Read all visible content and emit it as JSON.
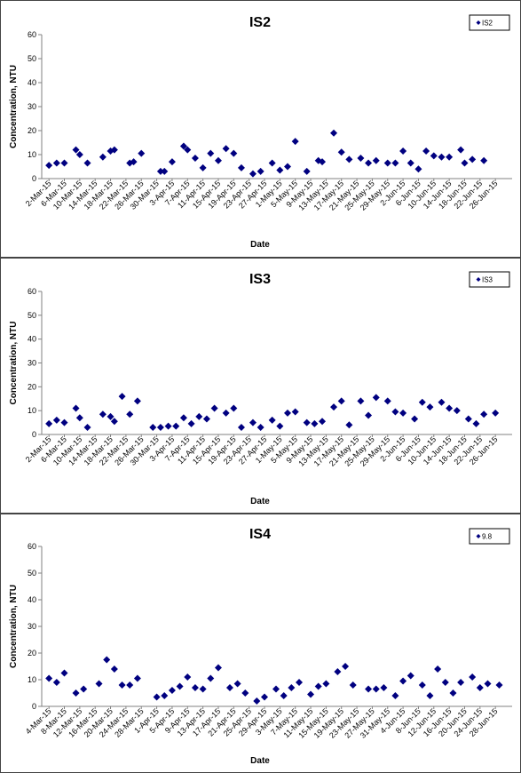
{
  "chart_data": [
    {
      "type": "scatter",
      "title": "IS2",
      "xlabel": "Date",
      "ylabel": "Concentration, NTU",
      "ylim": [
        0,
        60
      ],
      "yticks": [
        "0",
        "10",
        "20",
        "30",
        "40",
        "50",
        "60"
      ],
      "grid": false,
      "legend_position": "top-right",
      "marker_color": "#000080",
      "series": [
        {
          "name": "IS2",
          "points": [
            [
              "2-Mar-15",
              5.5
            ],
            [
              "4-Mar-15",
              6.5
            ],
            [
              "6-Mar-15",
              6.5
            ],
            [
              "9-Mar-15",
              12
            ],
            [
              "10-Mar-15",
              10
            ],
            [
              "12-Mar-15",
              6.5
            ],
            [
              "16-Mar-15",
              9
            ],
            [
              "18-Mar-15",
              11.5
            ],
            [
              "19-Mar-15",
              12
            ],
            [
              "23-Mar-15",
              6.5
            ],
            [
              "24-Mar-15",
              7
            ],
            [
              "26-Mar-15",
              10.5
            ],
            [
              "31-Mar-15",
              3
            ],
            [
              "1-Apr-15",
              3
            ],
            [
              "3-Apr-15",
              7
            ],
            [
              "6-Apr-15",
              13.5
            ],
            [
              "7-Apr-15",
              12
            ],
            [
              "9-Apr-15",
              8.5
            ],
            [
              "11-Apr-15",
              4.5
            ],
            [
              "13-Apr-15",
              10.5
            ],
            [
              "15-Apr-15",
              7.5
            ],
            [
              "17-Apr-15",
              12.5
            ],
            [
              "19-Apr-15",
              10.5
            ],
            [
              "21-Apr-15",
              4.5
            ],
            [
              "24-Apr-15",
              2
            ],
            [
              "26-Apr-15",
              3
            ],
            [
              "29-Apr-15",
              6.5
            ],
            [
              "1-May-15",
              3.5
            ],
            [
              "3-May-15",
              5
            ],
            [
              "5-May-15",
              15.5
            ],
            [
              "8-May-15",
              3
            ],
            [
              "11-May-15",
              7.5
            ],
            [
              "12-May-15",
              7
            ],
            [
              "15-May-15",
              19
            ],
            [
              "17-May-15",
              11
            ],
            [
              "19-May-15",
              8
            ],
            [
              "22-May-15",
              8.5
            ],
            [
              "24-May-15",
              6.5
            ],
            [
              "26-May-15",
              7.5
            ],
            [
              "29-May-15",
              6.5
            ],
            [
              "31-May-15",
              6.5
            ],
            [
              "2-Jun-15",
              11.5
            ],
            [
              "4-Jun-15",
              6.5
            ],
            [
              "6-Jun-15",
              4
            ],
            [
              "8-Jun-15",
              11.5
            ],
            [
              "10-Jun-15",
              9.5
            ],
            [
              "12-Jun-15",
              9
            ],
            [
              "14-Jun-15",
              9
            ],
            [
              "17-Jun-15",
              12
            ],
            [
              "18-Jun-15",
              6.5
            ],
            [
              "20-Jun-15",
              8
            ],
            [
              "23-Jun-15",
              7.5
            ]
          ]
        }
      ],
      "xticks": [
        "2-Mar-15",
        "6-Mar-15",
        "10-Mar-15",
        "14-Mar-15",
        "18-Mar-15",
        "22-Mar-15",
        "26-Mar-15",
        "30-Mar-15",
        "3-Apr-15",
        "7-Apr-15",
        "11-Apr-15",
        "15-Apr-15",
        "19-Apr-15",
        "23-Apr-15",
        "27-Apr-15",
        "1-May-15",
        "5-May-15",
        "9-May-15",
        "13-May-15",
        "17-May-15",
        "21-May-15",
        "25-May-15",
        "29-May-15",
        "2-Jun-15",
        "6-Jun-15",
        "10-Jun-15",
        "14-Jun-15",
        "18-Jun-15",
        "22-Jun-15",
        "26-Jun-15"
      ]
    },
    {
      "type": "scatter",
      "title": "IS3",
      "xlabel": "Date",
      "ylabel": "Concentration, NTU",
      "ylim": [
        0,
        60
      ],
      "yticks": [
        "0",
        "10",
        "20",
        "30",
        "40",
        "50",
        "60"
      ],
      "grid": false,
      "legend_position": "top-right",
      "marker_color": "#000080",
      "series": [
        {
          "name": "IS3",
          "points": [
            [
              "2-Mar-15",
              4.5
            ],
            [
              "4-Mar-15",
              6
            ],
            [
              "6-Mar-15",
              5
            ],
            [
              "9-Mar-15",
              11
            ],
            [
              "10-Mar-15",
              7
            ],
            [
              "12-Mar-15",
              3
            ],
            [
              "16-Mar-15",
              8.5
            ],
            [
              "18-Mar-15",
              7.5
            ],
            [
              "19-Mar-15",
              5.5
            ],
            [
              "21-Mar-15",
              16
            ],
            [
              "23-Mar-15",
              8.5
            ],
            [
              "25-Mar-15",
              14
            ],
            [
              "29-Mar-15",
              3
            ],
            [
              "31-Mar-15",
              3
            ],
            [
              "2-Apr-15",
              3.5
            ],
            [
              "4-Apr-15",
              3.5
            ],
            [
              "6-Apr-15",
              7
            ],
            [
              "8-Apr-15",
              4.5
            ],
            [
              "10-Apr-15",
              7.5
            ],
            [
              "12-Apr-15",
              6.5
            ],
            [
              "14-Apr-15",
              11
            ],
            [
              "17-Apr-15",
              9
            ],
            [
              "19-Apr-15",
              11
            ],
            [
              "21-Apr-15",
              3
            ],
            [
              "24-Apr-15",
              5
            ],
            [
              "26-Apr-15",
              3
            ],
            [
              "29-Apr-15",
              6
            ],
            [
              "1-May-15",
              3.5
            ],
            [
              "3-May-15",
              9
            ],
            [
              "5-May-15",
              9.5
            ],
            [
              "8-May-15",
              5
            ],
            [
              "10-May-15",
              4.5
            ],
            [
              "12-May-15",
              5.5
            ],
            [
              "15-May-15",
              11.5
            ],
            [
              "17-May-15",
              14
            ],
            [
              "19-May-15",
              4
            ],
            [
              "22-May-15",
              14
            ],
            [
              "24-May-15",
              8
            ],
            [
              "26-May-15",
              15.5
            ],
            [
              "29-May-15",
              14
            ],
            [
              "31-May-15",
              9.5
            ],
            [
              "2-Jun-15",
              9
            ],
            [
              "5-Jun-15",
              6.5
            ],
            [
              "7-Jun-15",
              13.5
            ],
            [
              "9-Jun-15",
              11.5
            ],
            [
              "12-Jun-15",
              13.5
            ],
            [
              "14-Jun-15",
              11
            ],
            [
              "16-Jun-15",
              10
            ],
            [
              "19-Jun-15",
              6.5
            ],
            [
              "21-Jun-15",
              4.5
            ],
            [
              "23-Jun-15",
              8.5
            ],
            [
              "26-Jun-15",
              9
            ]
          ]
        }
      ],
      "xticks": [
        "2-Mar-15",
        "6-Mar-15",
        "10-Mar-15",
        "14-Mar-15",
        "18-Mar-15",
        "22-Mar-15",
        "26-Mar-15",
        "30-Mar-15",
        "3-Apr-15",
        "7-Apr-15",
        "11-Apr-15",
        "15-Apr-15",
        "19-Apr-15",
        "23-Apr-15",
        "27-Apr-15",
        "1-May-15",
        "5-May-15",
        "9-May-15",
        "13-May-15",
        "17-May-15",
        "21-May-15",
        "25-May-15",
        "29-May-15",
        "2-Jun-15",
        "6-Jun-15",
        "10-Jun-15",
        "14-Jun-15",
        "18-Jun-15",
        "22-Jun-15",
        "26-Jun-15"
      ]
    },
    {
      "type": "scatter",
      "title": "IS4",
      "xlabel": "Date",
      "ylabel": "Concentration, NTU",
      "ylim": [
        0,
        60
      ],
      "yticks": [
        "0",
        "10",
        "20",
        "30",
        "40",
        "50",
        "60"
      ],
      "grid": false,
      "legend_position": "top-right",
      "marker_color": "#000080",
      "series": [
        {
          "name": "9.8",
          "points": [
            [
              "4-Mar-15",
              10.5
            ],
            [
              "6-Mar-15",
              9
            ],
            [
              "8-Mar-15",
              12.5
            ],
            [
              "11-Mar-15",
              5
            ],
            [
              "13-Mar-15",
              6.5
            ],
            [
              "17-Mar-15",
              8.5
            ],
            [
              "19-Mar-15",
              17.5
            ],
            [
              "21-Mar-15",
              14
            ],
            [
              "23-Mar-15",
              8
            ],
            [
              "25-Mar-15",
              8
            ],
            [
              "27-Mar-15",
              10.5
            ],
            [
              "1-Apr-15",
              3.5
            ],
            [
              "3-Apr-15",
              4
            ],
            [
              "5-Apr-15",
              6
            ],
            [
              "7-Apr-15",
              7.5
            ],
            [
              "9-Apr-15",
              11
            ],
            [
              "11-Apr-15",
              7
            ],
            [
              "13-Apr-15",
              6.5
            ],
            [
              "15-Apr-15",
              10.5
            ],
            [
              "17-Apr-15",
              14.5
            ],
            [
              "20-Apr-15",
              7
            ],
            [
              "22-Apr-15",
              8.5
            ],
            [
              "24-Apr-15",
              5
            ],
            [
              "27-Apr-15",
              2
            ],
            [
              "29-Apr-15",
              3.5
            ],
            [
              "2-May-15",
              6.5
            ],
            [
              "4-May-15",
              4
            ],
            [
              "6-May-15",
              7
            ],
            [
              "8-May-15",
              9
            ],
            [
              "11-May-15",
              4.5
            ],
            [
              "13-May-15",
              7.5
            ],
            [
              "15-May-15",
              8.5
            ],
            [
              "18-May-15",
              13
            ],
            [
              "20-May-15",
              15
            ],
            [
              "22-May-15",
              8
            ],
            [
              "26-May-15",
              6.5
            ],
            [
              "28-May-15",
              6.5
            ],
            [
              "30-May-15",
              7
            ],
            [
              "2-Jun-15",
              4
            ],
            [
              "4-Jun-15",
              9.5
            ],
            [
              "6-Jun-15",
              11.5
            ],
            [
              "9-Jun-15",
              8
            ],
            [
              "11-Jun-15",
              4
            ],
            [
              "13-Jun-15",
              14
            ],
            [
              "15-Jun-15",
              9
            ],
            [
              "17-Jun-15",
              5
            ],
            [
              "19-Jun-15",
              9
            ],
            [
              "22-Jun-15",
              11
            ],
            [
              "24-Jun-15",
              7
            ],
            [
              "26-Jun-15",
              8.5
            ],
            [
              "29-Jun-15",
              8
            ]
          ]
        }
      ],
      "xticks": [
        "4-Mar-15",
        "8-Mar-15",
        "12-Mar-15",
        "16-Mar-15",
        "20-Mar-15",
        "24-Mar-15",
        "28-Mar-15",
        "1-Apr-15",
        "5-Apr-15",
        "9-Apr-15",
        "13-Apr-15",
        "17-Apr-15",
        "21-Apr-15",
        "25-Apr-15",
        "29-Apr-15",
        "3-May-15",
        "7-May-15",
        "11-May-15",
        "15-May-15",
        "19-May-15",
        "23-May-15",
        "27-May-15",
        "31-May-15",
        "4-Jun-15",
        "8-Jun-15",
        "12-Jun-15",
        "16-Jun-15",
        "20-Jun-15",
        "24-Jun-15",
        "28-Jun-15"
      ]
    }
  ]
}
